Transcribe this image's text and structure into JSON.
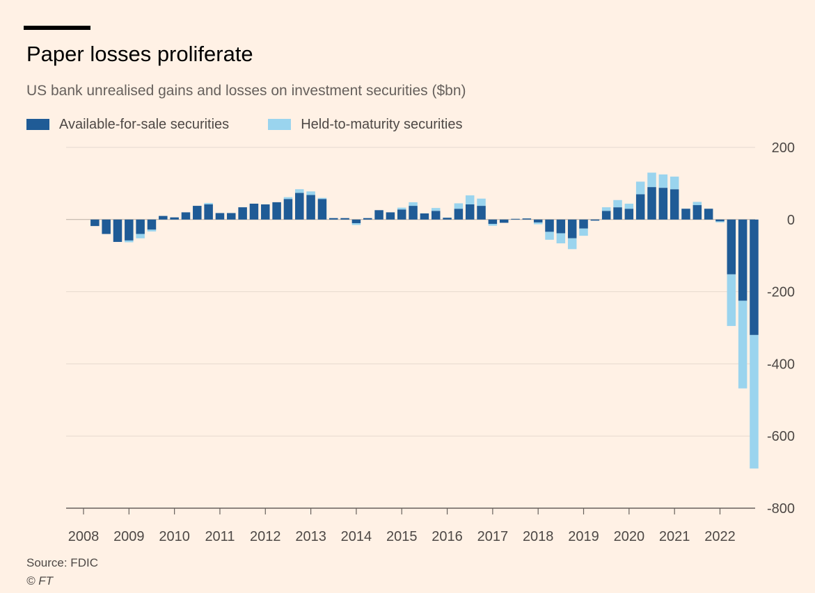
{
  "title": "Paper losses proliferate",
  "subtitle": "US bank unrealised gains and losses on investment securities ($bn)",
  "source": "Source: FDIC",
  "credit": "© FT",
  "colors": {
    "background": "#FFF1E5",
    "afs": "#1F5B96",
    "htm": "#9AD4EE",
    "grid": "#E6D9CE",
    "axis": "#66605C"
  },
  "chart_data": {
    "type": "bar",
    "stacked": true,
    "ylim": [
      -800,
      200
    ],
    "yticks": [
      200,
      0,
      -200,
      -400,
      -600,
      -800
    ],
    "ytick_labels": [
      "200",
      "0",
      "-200",
      "-400",
      "-600",
      "-800"
    ],
    "grid": true,
    "legend_position": "top-left",
    "x_tick_labels": [
      "2008",
      "2009",
      "2010",
      "2011",
      "2012",
      "2013",
      "2014",
      "2015",
      "2016",
      "2017",
      "2018",
      "2019",
      "2020",
      "2021",
      "2022"
    ],
    "categories": [
      "2008 Q1",
      "2008 Q2",
      "2008 Q3",
      "2008 Q4",
      "2009 Q1",
      "2009 Q2",
      "2009 Q3",
      "2009 Q4",
      "2010 Q1",
      "2010 Q2",
      "2010 Q3",
      "2010 Q4",
      "2011 Q1",
      "2011 Q2",
      "2011 Q3",
      "2011 Q4",
      "2012 Q1",
      "2012 Q2",
      "2012 Q3",
      "2012 Q4",
      "2013 Q1",
      "2013 Q2",
      "2013 Q3",
      "2013 Q4",
      "2014 Q1",
      "2014 Q2",
      "2014 Q3",
      "2014 Q4",
      "2015 Q1",
      "2015 Q2",
      "2015 Q3",
      "2015 Q4",
      "2016 Q1",
      "2016 Q2",
      "2016 Q3",
      "2016 Q4",
      "2017 Q1",
      "2017 Q2",
      "2017 Q3",
      "2017 Q4",
      "2018 Q1",
      "2018 Q2",
      "2018 Q3",
      "2018 Q4",
      "2019 Q1",
      "2019 Q2",
      "2019 Q3",
      "2019 Q4",
      "2020 Q1",
      "2020 Q2",
      "2020 Q3",
      "2020 Q4",
      "2021 Q1",
      "2021 Q2",
      "2021 Q3",
      "2021 Q4",
      "2022 Q1",
      "2022 Q2",
      "2022 Q3",
      "2022 Q4"
    ],
    "series": [
      {
        "name": "Available-for-sale securities",
        "color": "#1F5B96",
        "values": [
          0,
          -18,
          -40,
          -62,
          -58,
          -40,
          -28,
          10,
          6,
          20,
          38,
          42,
          18,
          18,
          34,
          44,
          42,
          48,
          57,
          74,
          68,
          57,
          4,
          4,
          -10,
          4,
          26,
          20,
          28,
          38,
          17,
          24,
          5,
          30,
          42,
          38,
          -12,
          -9,
          2,
          3,
          -8,
          -34,
          -38,
          -52,
          -25,
          -3,
          24,
          34,
          30,
          70,
          90,
          88,
          84,
          30,
          40,
          30,
          -5,
          -152,
          -225,
          -320
        ]
      },
      {
        "name": "Held-to-maturity securities",
        "color": "#9AD4EE",
        "values": [
          0,
          0,
          0,
          0,
          -5,
          -12,
          -5,
          0,
          0,
          0,
          0,
          4,
          0,
          0,
          0,
          0,
          0,
          0,
          5,
          10,
          10,
          3,
          0,
          0,
          -5,
          0,
          0,
          0,
          5,
          10,
          0,
          8,
          0,
          15,
          25,
          20,
          -5,
          0,
          0,
          0,
          -5,
          -22,
          -28,
          -30,
          -20,
          0,
          10,
          20,
          14,
          35,
          40,
          37,
          35,
          0,
          9,
          0,
          -3,
          -143,
          -243,
          -370
        ]
      }
    ]
  }
}
